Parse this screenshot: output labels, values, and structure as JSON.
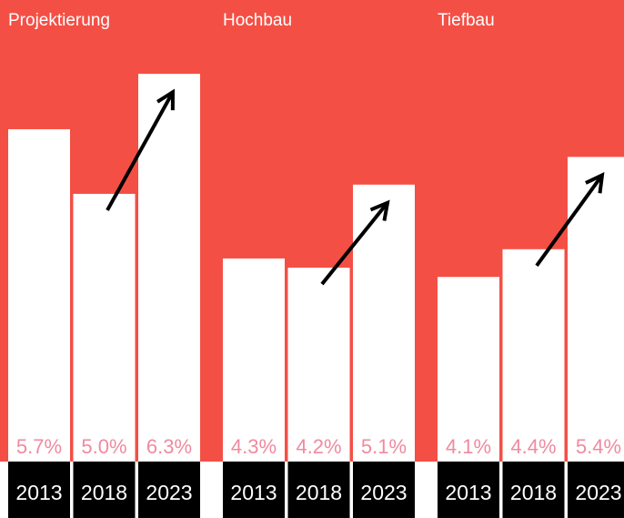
{
  "chart_data": [
    {
      "type": "bar",
      "title": "Projektierung",
      "categories": [
        "2013",
        "2018",
        "2023"
      ],
      "values": [
        5.7,
        5.0,
        6.3
      ],
      "value_labels": [
        "5.7%",
        "5.0%",
        "6.3%"
      ],
      "color": "#ffffff",
      "ylim": [
        2.1,
        7.1
      ]
    },
    {
      "type": "bar",
      "title": "Hochbau",
      "categories": [
        "2013",
        "2018",
        "2023"
      ],
      "values": [
        4.3,
        4.2,
        5.1
      ],
      "value_labels": [
        "4.3%",
        "4.2%",
        "5.1%"
      ],
      "color": "#ffffff",
      "ylim": [
        2.1,
        7.1
      ]
    },
    {
      "type": "bar",
      "title": "Tiefbau",
      "categories": [
        "2013",
        "2018",
        "2023"
      ],
      "values": [
        4.1,
        4.4,
        5.4
      ],
      "value_labels": [
        "4.1%",
        "4.4%",
        "5.4%"
      ],
      "color": "#ffffff",
      "ylim": [
        2.1,
        7.1
      ]
    }
  ]
}
